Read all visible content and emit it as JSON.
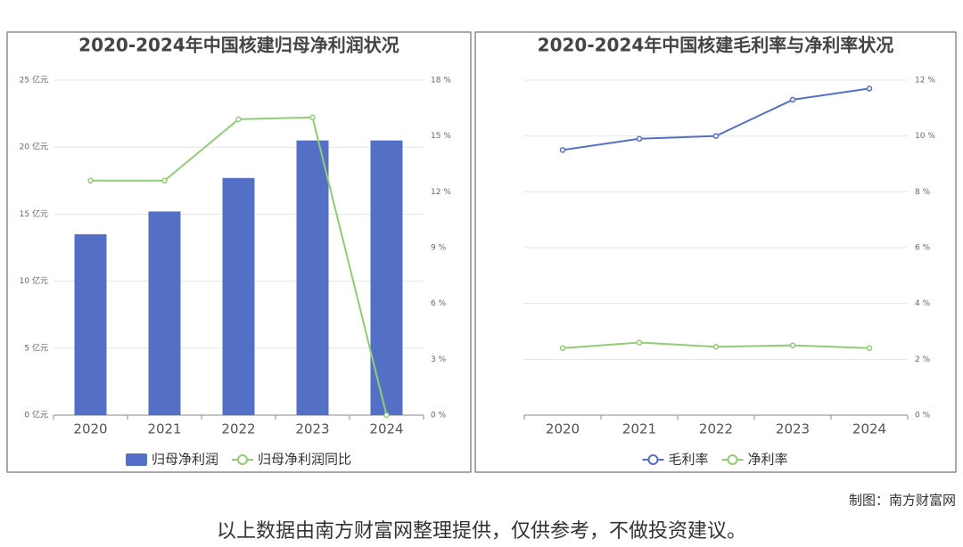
{
  "chart_data": [
    {
      "type": "bar",
      "title": "2020-2024年中国核建归母净利润状况",
      "categories": [
        "2020",
        "2021",
        "2022",
        "2023",
        "2024"
      ],
      "series": [
        {
          "name": "归母净利润",
          "type": "bar",
          "color": "#5470c6",
          "values": [
            13.5,
            15.2,
            17.7,
            20.5,
            20.5
          ]
        },
        {
          "name": "归母净利润同比",
          "type": "line",
          "axis": "y2",
          "color": "#91cc75",
          "values": [
            12.6,
            12.6,
            15.9,
            16.0,
            0
          ]
        }
      ],
      "ylim": [
        0,
        25
      ],
      "yticks": [
        {
          "value": 0,
          "label": "0 亿元"
        },
        {
          "value": 5,
          "label": "5 亿元"
        },
        {
          "value": 10,
          "label": "10 亿元"
        },
        {
          "value": 15,
          "label": "15 亿元"
        },
        {
          "value": 20,
          "label": "20 亿元"
        },
        {
          "value": 25,
          "label": "25 亿元"
        }
      ],
      "y2lim": [
        0,
        18
      ],
      "y2ticks": [
        {
          "value": 0,
          "label": "0 %"
        },
        {
          "value": 3,
          "label": "3 %"
        },
        {
          "value": 6,
          "label": "6 %"
        },
        {
          "value": 9,
          "label": "9 %"
        },
        {
          "value": 12,
          "label": "12 %"
        },
        {
          "value": 15,
          "label": "15 %"
        },
        {
          "value": 18,
          "label": "18 %"
        }
      ],
      "grid": true,
      "legend": "bottom"
    },
    {
      "type": "line",
      "title": "2020-2024年中国核建毛利率与净利率状况",
      "categories": [
        "2020",
        "2021",
        "2022",
        "2023",
        "2024"
      ],
      "series": [
        {
          "name": "毛利率",
          "type": "line",
          "color": "#5470c6",
          "values": [
            9.5,
            9.9,
            10.0,
            11.3,
            11.7
          ]
        },
        {
          "name": "净利率",
          "type": "line",
          "color": "#91cc75",
          "values": [
            2.4,
            2.6,
            2.45,
            2.5,
            2.4
          ]
        }
      ],
      "ylim": [
        0,
        12
      ],
      "yticks": [
        {
          "value": 0,
          "label": "0 %"
        },
        {
          "value": 2,
          "label": "2 %"
        },
        {
          "value": 4,
          "label": "4 %"
        },
        {
          "value": 6,
          "label": "6 %"
        },
        {
          "value": 8,
          "label": "8 %"
        },
        {
          "value": 10,
          "label": "10 %"
        },
        {
          "value": 12,
          "label": "12 %"
        }
      ],
      "y_axis_position": "right",
      "grid": true,
      "legend": "bottom"
    }
  ],
  "credit": "制图：南方财富网",
  "disclaimer": "以上数据由南方财富网整理提供，仅供参考，不做投资建议。"
}
